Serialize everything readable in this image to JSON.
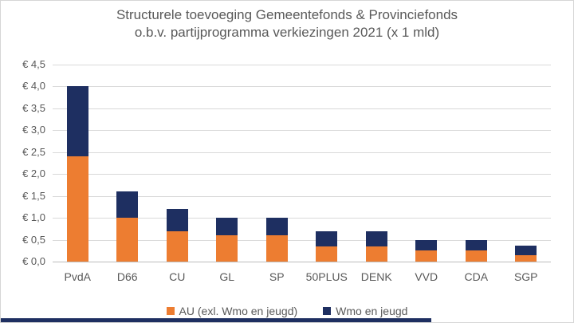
{
  "title": {
    "line1": "Structurele toevoeging Gemeentefonds & Provinciefonds",
    "line2": "o.b.v. partijprogramma verkiezingen 2021 (x 1 mld)"
  },
  "colors": {
    "au_orange": "#ED7D31",
    "wmo_navy": "#1E2F61",
    "gridline": "#D9D9D9",
    "axis_line": "#BDBDBD",
    "text_gray": "#595959",
    "bottom_strip": "#1E2F61"
  },
  "chart_data": {
    "type": "bar",
    "stacked": true,
    "title": "Structurele toevoeging Gemeentefonds & Provinciefonds o.b.v. partijprogramma verkiezingen 2021 (x 1 mld)",
    "categories": [
      "PvdA",
      "D66",
      "CU",
      "GL",
      "SP",
      "50PLUS",
      "DENK",
      "VVD",
      "CDA",
      "SGP"
    ],
    "series": [
      {
        "name": "AU (exl. Wmo en jeugd)",
        "color": "#ED7D31",
        "values": [
          2.4,
          1.0,
          0.7,
          0.6,
          0.6,
          0.35,
          0.35,
          0.25,
          0.25,
          0.15
        ]
      },
      {
        "name": "Wmo en jeugd",
        "color": "#1E2F61",
        "values": [
          1.6,
          0.6,
          0.5,
          0.4,
          0.4,
          0.35,
          0.35,
          0.25,
          0.25,
          0.22
        ]
      }
    ],
    "totals": [
      4.0,
      1.6,
      1.2,
      1.0,
      1.0,
      0.7,
      0.7,
      0.5,
      0.5,
      0.37
    ],
    "xlabel": "",
    "ylabel": "",
    "ylim": [
      0,
      4.5
    ],
    "y_tick_interval": 0.5,
    "y_ticks_top_to_bottom": [
      "€ 4,5",
      "€ 4,0",
      "€ 3,5",
      "€ 3,0",
      "€ 2,5",
      "€ 2,0",
      "€ 1,5",
      "€ 1,0",
      "€ 0,5",
      "€ 0,0"
    ],
    "grid": true,
    "legend_position": "bottom"
  },
  "legend": {
    "items": [
      {
        "label": "AU (exl. Wmo en jeugd)",
        "color": "#ED7D31"
      },
      {
        "label": "Wmo en jeugd",
        "color": "#1E2F61"
      }
    ]
  }
}
